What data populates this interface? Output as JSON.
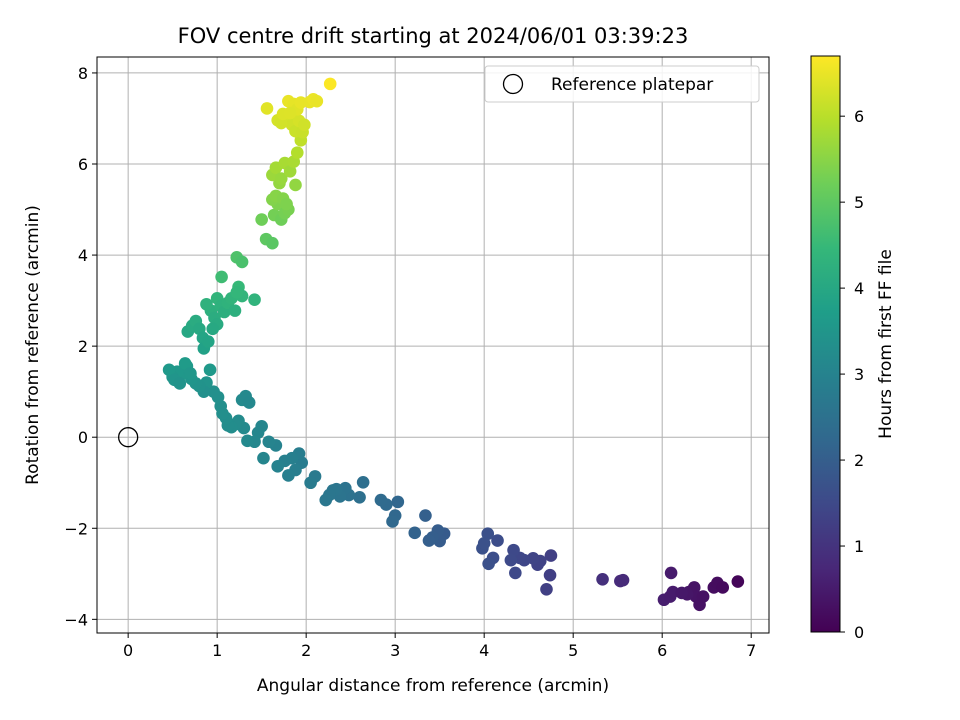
{
  "chart_data": {
    "type": "scatter",
    "title": "FOV centre drift starting at 2024/06/01 03:39:23",
    "xlabel": "Angular distance from reference (arcmin)",
    "ylabel": "Rotation from reference (arcmin)",
    "xlim": [
      -0.35,
      7.2
    ],
    "ylim": [
      -4.3,
      8.35
    ],
    "xticks": [
      0,
      1,
      2,
      3,
      4,
      5,
      6,
      7
    ],
    "yticks": [
      -4,
      -2,
      0,
      2,
      4,
      6,
      8
    ],
    "grid": true,
    "legend": {
      "placement": "top-right",
      "entries": [
        "Reference platepar"
      ]
    },
    "reference_point": {
      "x": 0,
      "y": 0,
      "label": "Reference platepar"
    },
    "colorbar": {
      "label": "Hours from first FF file",
      "colormap": "viridis",
      "range": [
        0,
        6.7
      ],
      "ticks": [
        0,
        1,
        2,
        3,
        4,
        5,
        6
      ]
    },
    "colormap_stops": [
      "#440154",
      "#482878",
      "#3e4989",
      "#31688e",
      "#26828e",
      "#1f9e89",
      "#35b779",
      "#6ece58",
      "#b5de2b",
      "#fde725"
    ],
    "series": [
      {
        "columns": [
          "x",
          "y",
          "hours"
        ],
        "points": [
          [
            6.02,
            -3.57
          ],
          [
            6.09,
            -3.5
          ],
          [
            6.12,
            -3.4
          ],
          [
            6.1,
            -2.98
          ],
          [
            6.3,
            -3.4
          ],
          [
            6.36,
            -3.3
          ],
          [
            6.38,
            -3.5
          ],
          [
            6.42,
            -3.68
          ],
          [
            6.46,
            -3.5
          ],
          [
            6.58,
            -3.3
          ],
          [
            6.62,
            -3.2
          ],
          [
            6.68,
            -3.3
          ],
          [
            6.85,
            -3.17
          ],
          [
            6.28,
            -3.45
          ],
          [
            6.22,
            -3.42
          ],
          [
            5.33,
            -3.12
          ],
          [
            5.53,
            -3.16
          ],
          [
            5.56,
            -3.14
          ],
          [
            4.75,
            -2.6
          ],
          [
            4.74,
            -3.03
          ],
          [
            4.7,
            -3.34
          ],
          [
            4.63,
            -2.72
          ],
          [
            4.6,
            -2.8
          ],
          [
            4.55,
            -2.66
          ],
          [
            4.45,
            -2.7
          ],
          [
            4.4,
            -2.65
          ],
          [
            4.35,
            -2.98
          ],
          [
            4.33,
            -2.48
          ],
          [
            4.3,
            -2.7
          ],
          [
            4.15,
            -2.27
          ],
          [
            4.1,
            -2.65
          ],
          [
            4.05,
            -2.78
          ],
          [
            3.98,
            -2.44
          ],
          [
            4.04,
            -2.12
          ],
          [
            4.0,
            -2.33
          ],
          [
            3.55,
            -2.12
          ],
          [
            3.5,
            -2.28
          ],
          [
            3.48,
            -2.05
          ],
          [
            3.42,
            -2.2
          ],
          [
            3.38,
            -2.27
          ],
          [
            3.34,
            -1.72
          ],
          [
            3.22,
            -2.1
          ],
          [
            3.03,
            -1.42
          ],
          [
            3.0,
            -1.72
          ],
          [
            2.97,
            -1.85
          ],
          [
            2.9,
            -1.48
          ],
          [
            2.84,
            -1.38
          ],
          [
            2.64,
            -0.99
          ],
          [
            2.6,
            -1.32
          ],
          [
            2.48,
            -1.27
          ],
          [
            2.44,
            -1.12
          ],
          [
            2.38,
            -1.3
          ],
          [
            2.34,
            -1.14
          ],
          [
            2.3,
            -1.17
          ],
          [
            2.26,
            -1.27
          ],
          [
            2.22,
            -1.38
          ],
          [
            2.1,
            -0.86
          ],
          [
            2.05,
            -1.0
          ],
          [
            1.95,
            -0.56
          ],
          [
            1.92,
            -0.36
          ],
          [
            1.88,
            -0.72
          ],
          [
            1.84,
            -0.46
          ],
          [
            1.8,
            -0.84
          ],
          [
            1.76,
            -0.52
          ],
          [
            1.68,
            -0.64
          ],
          [
            1.66,
            -0.18
          ],
          [
            1.58,
            -0.1
          ],
          [
            1.52,
            -0.46
          ],
          [
            1.5,
            0.24
          ],
          [
            1.46,
            0.1
          ],
          [
            1.42,
            -0.1
          ],
          [
            1.34,
            -0.08
          ],
          [
            1.3,
            0.2
          ],
          [
            1.28,
            0.82
          ],
          [
            1.24,
            0.36
          ],
          [
            1.2,
            0.28
          ],
          [
            1.16,
            0.22
          ],
          [
            1.12,
            0.26
          ],
          [
            1.1,
            0.42
          ],
          [
            1.06,
            0.52
          ],
          [
            1.04,
            0.68
          ],
          [
            1.01,
            0.88
          ],
          [
            0.96,
            1.0
          ],
          [
            0.92,
            1.48
          ],
          [
            0.88,
            1.2
          ],
          [
            0.85,
            1.0
          ],
          [
            0.8,
            1.12
          ],
          [
            0.76,
            1.18
          ],
          [
            0.71,
            1.28
          ],
          [
            0.66,
            1.56
          ],
          [
            0.6,
            1.38
          ],
          [
            0.55,
            1.44
          ],
          [
            0.5,
            1.32
          ],
          [
            0.46,
            1.48
          ],
          [
            0.52,
            1.26
          ],
          [
            1.32,
            0.9
          ],
          [
            1.36,
            0.76
          ],
          [
            0.64,
            1.62
          ],
          [
            0.58,
            1.18
          ],
          [
            0.7,
            1.4
          ],
          [
            0.67,
            2.32
          ],
          [
            0.72,
            2.45
          ],
          [
            0.76,
            2.55
          ],
          [
            0.8,
            2.38
          ],
          [
            0.84,
            2.18
          ],
          [
            0.85,
            1.95
          ],
          [
            0.9,
            2.1
          ],
          [
            0.93,
            2.78
          ],
          [
            0.97,
            2.62
          ],
          [
            1.0,
            3.05
          ],
          [
            1.04,
            2.88
          ],
          [
            1.08,
            2.75
          ],
          [
            1.12,
            2.95
          ],
          [
            1.16,
            3.05
          ],
          [
            1.2,
            2.78
          ],
          [
            1.24,
            3.3
          ],
          [
            1.28,
            3.1
          ],
          [
            1.05,
            3.52
          ],
          [
            1.0,
            2.48
          ],
          [
            1.42,
            3.02
          ],
          [
            0.95,
            2.38
          ],
          [
            0.88,
            2.92
          ],
          [
            1.22,
            3.18
          ],
          [
            1.22,
            3.95
          ],
          [
            1.28,
            3.85
          ],
          [
            1.5,
            4.78
          ],
          [
            1.55,
            4.35
          ],
          [
            1.62,
            4.26
          ],
          [
            1.64,
            4.88
          ],
          [
            1.68,
            5.12
          ],
          [
            1.72,
            4.78
          ],
          [
            1.76,
            4.92
          ],
          [
            1.8,
            5.0
          ],
          [
            1.62,
            5.22
          ],
          [
            1.66,
            5.3
          ],
          [
            1.7,
            5.58
          ],
          [
            1.74,
            5.24
          ],
          [
            1.78,
            5.12
          ],
          [
            1.62,
            5.76
          ],
          [
            1.66,
            5.92
          ],
          [
            1.72,
            5.68
          ],
          [
            1.76,
            6.02
          ],
          [
            1.82,
            5.84
          ],
          [
            1.86,
            6.05
          ],
          [
            1.88,
            5.54
          ],
          [
            1.9,
            6.25
          ],
          [
            1.94,
            6.52
          ],
          [
            1.68,
            6.96
          ],
          [
            1.76,
            7.05
          ],
          [
            1.8,
            6.98
          ],
          [
            1.84,
            6.86
          ],
          [
            1.88,
            6.72
          ],
          [
            1.92,
            6.95
          ],
          [
            1.96,
            6.7
          ],
          [
            1.98,
            6.86
          ],
          [
            1.56,
            7.22
          ],
          [
            1.72,
            6.9
          ],
          [
            1.8,
            7.38
          ],
          [
            1.86,
            7.32
          ],
          [
            1.9,
            7.2
          ],
          [
            1.94,
            7.35
          ],
          [
            2.04,
            7.36
          ],
          [
            2.08,
            7.42
          ],
          [
            2.12,
            7.38
          ],
          [
            2.27,
            7.76
          ],
          [
            1.74,
            7.1
          ],
          [
            1.82,
            7.12
          ]
        ]
      }
    ]
  }
}
